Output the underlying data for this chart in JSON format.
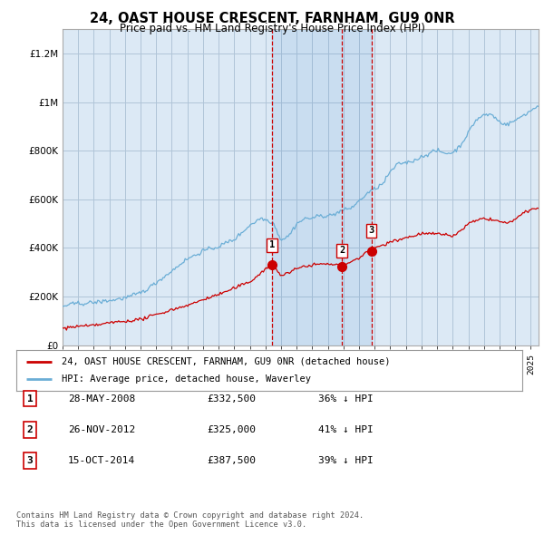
{
  "title": "24, OAST HOUSE CRESCENT, FARNHAM, GU9 0NR",
  "subtitle": "Price paid vs. HM Land Registry's House Price Index (HPI)",
  "background_color": "#ffffff",
  "plot_background_color": "#dce9f5",
  "grid_color": "#c8d8e8",
  "ylim": [
    0,
    1300000
  ],
  "yticks": [
    0,
    200000,
    400000,
    600000,
    800000,
    1000000,
    1200000
  ],
  "ytick_labels": [
    "£0",
    "£200K",
    "£400K",
    "£600K",
    "£800K",
    "£1M",
    "£1.2M"
  ],
  "sale_year_nums": [
    2008.41,
    2012.9,
    2014.79
  ],
  "sale_prices": [
    332500,
    325000,
    387500
  ],
  "sale_labels": [
    "1",
    "2",
    "3"
  ],
  "legend_line1": "24, OAST HOUSE CRESCENT, FARNHAM, GU9 0NR (detached house)",
  "legend_line2": "HPI: Average price, detached house, Waverley",
  "table_entries": [
    {
      "num": "1",
      "date": "28-MAY-2008",
      "price": "£332,500",
      "pct": "36% ↓ HPI"
    },
    {
      "num": "2",
      "date": "26-NOV-2012",
      "price": "£325,000",
      "pct": "41% ↓ HPI"
    },
    {
      "num": "3",
      "date": "15-OCT-2014",
      "price": "£387,500",
      "pct": "39% ↓ HPI"
    }
  ],
  "footer": "Contains HM Land Registry data © Crown copyright and database right 2024.\nThis data is licensed under the Open Government Licence v3.0.",
  "hpi_color": "#6baed6",
  "sale_line_color": "#cc0000",
  "vline_color": "#cc0000",
  "marker_color": "#cc0000",
  "xlim_left": 1995.0,
  "xlim_right": 2025.5
}
